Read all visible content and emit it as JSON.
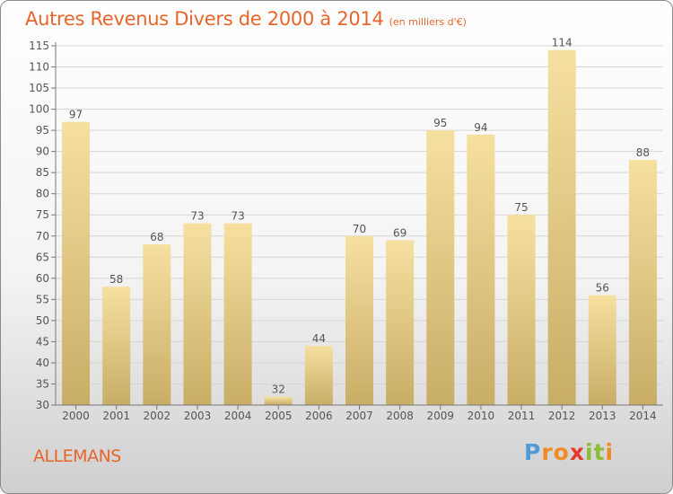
{
  "header": {
    "title": "Autres Revenus Divers de 2000 à 2014",
    "unit": "(en milliers d'€)"
  },
  "footer": {
    "commune": "ALLEMANS",
    "logo": {
      "letters": [
        "P",
        "r",
        "o",
        "x",
        "i",
        "t",
        "i"
      ],
      "colors": [
        "#4f9bd8",
        "#f08a24",
        "#f08a24",
        "#e13b2d",
        "#8dbb3a",
        "#8dbb3a",
        "#f08a24"
      ]
    }
  },
  "colors": {
    "title": "#e8652a",
    "bar_light": "#f6e0a0",
    "bar_dark": "#c8ad66",
    "label": "#555555",
    "grid": "#d6d6d6"
  },
  "chart_data": {
    "type": "bar",
    "title": "Autres Revenus Divers de 2000 à 2014",
    "categories": [
      "2000",
      "2001",
      "2002",
      "2003",
      "2004",
      "2005",
      "2006",
      "2007",
      "2008",
      "2009",
      "2010",
      "2011",
      "2012",
      "2013",
      "2014"
    ],
    "values": [
      97,
      58,
      68,
      73,
      73,
      32,
      44,
      70,
      69,
      95,
      94,
      75,
      114,
      56,
      88
    ],
    "value_labels": [
      "97",
      "58",
      "68",
      "73",
      "73",
      "32",
      "44",
      "70",
      "69",
      "95",
      "94",
      "75",
      "114",
      "56",
      "88"
    ],
    "ylim": [
      30,
      115
    ],
    "yticks": [
      30,
      35,
      40,
      45,
      50,
      55,
      60,
      65,
      70,
      75,
      80,
      85,
      90,
      95,
      100,
      105,
      110,
      115
    ],
    "ytick_labels": [
      "30",
      "35",
      "40",
      "45",
      "50",
      "55",
      "60",
      "65",
      "70",
      "75",
      "80",
      "85",
      "90",
      "95",
      "100",
      "105",
      "110",
      "115"
    ],
    "grid": true,
    "xlabel": "",
    "ylabel": ""
  }
}
